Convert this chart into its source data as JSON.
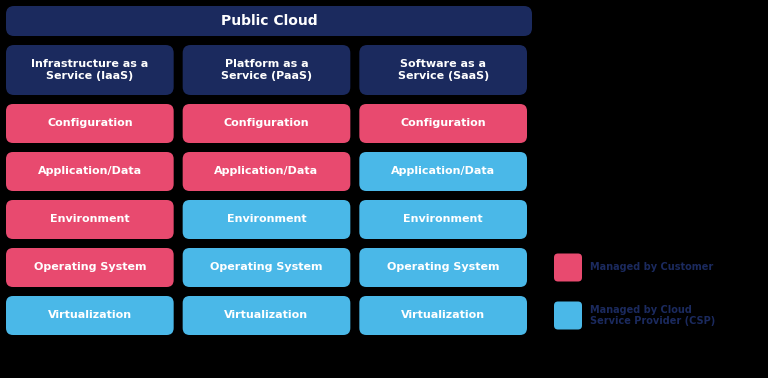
{
  "title": "Public Cloud",
  "title_bg": "#1b2a5e",
  "title_color": "#ffffff",
  "columns": [
    {
      "header": "Infrastructure as a\nService (IaaS)",
      "header_bg": "#1b2a5e",
      "header_color": "#ffffff"
    },
    {
      "header": "Platform as a\nService (PaaS)",
      "header_bg": "#1b2a5e",
      "header_color": "#ffffff"
    },
    {
      "header": "Software as a\nService (SaaS)",
      "header_bg": "#1b2a5e",
      "header_color": "#ffffff"
    }
  ],
  "rows": [
    {
      "label": "Configuration",
      "colors": [
        "#e84a6f",
        "#e84a6f",
        "#e84a6f"
      ]
    },
    {
      "label": "Application/Data",
      "colors": [
        "#e84a6f",
        "#e84a6f",
        "#4ab8e8"
      ]
    },
    {
      "label": "Environment",
      "colors": [
        "#e84a6f",
        "#4ab8e8",
        "#4ab8e8"
      ]
    },
    {
      "label": "Operating System",
      "colors": [
        "#e84a6f",
        "#4ab8e8",
        "#4ab8e8"
      ]
    },
    {
      "label": "Virtualization",
      "colors": [
        "#4ab8e8",
        "#4ab8e8",
        "#4ab8e8"
      ]
    }
  ],
  "legend": [
    {
      "label": "Managed by Customer",
      "color": "#e84a6f"
    },
    {
      "label": "Managed by Cloud\nService Provider (CSP)",
      "color": "#4ab8e8"
    }
  ],
  "text_color": "#ffffff",
  "bg_color": "#000000",
  "cell_text_size": 8,
  "header_text_size": 8,
  "title_text_size": 10,
  "legend_text_color": "#1b2a5e"
}
